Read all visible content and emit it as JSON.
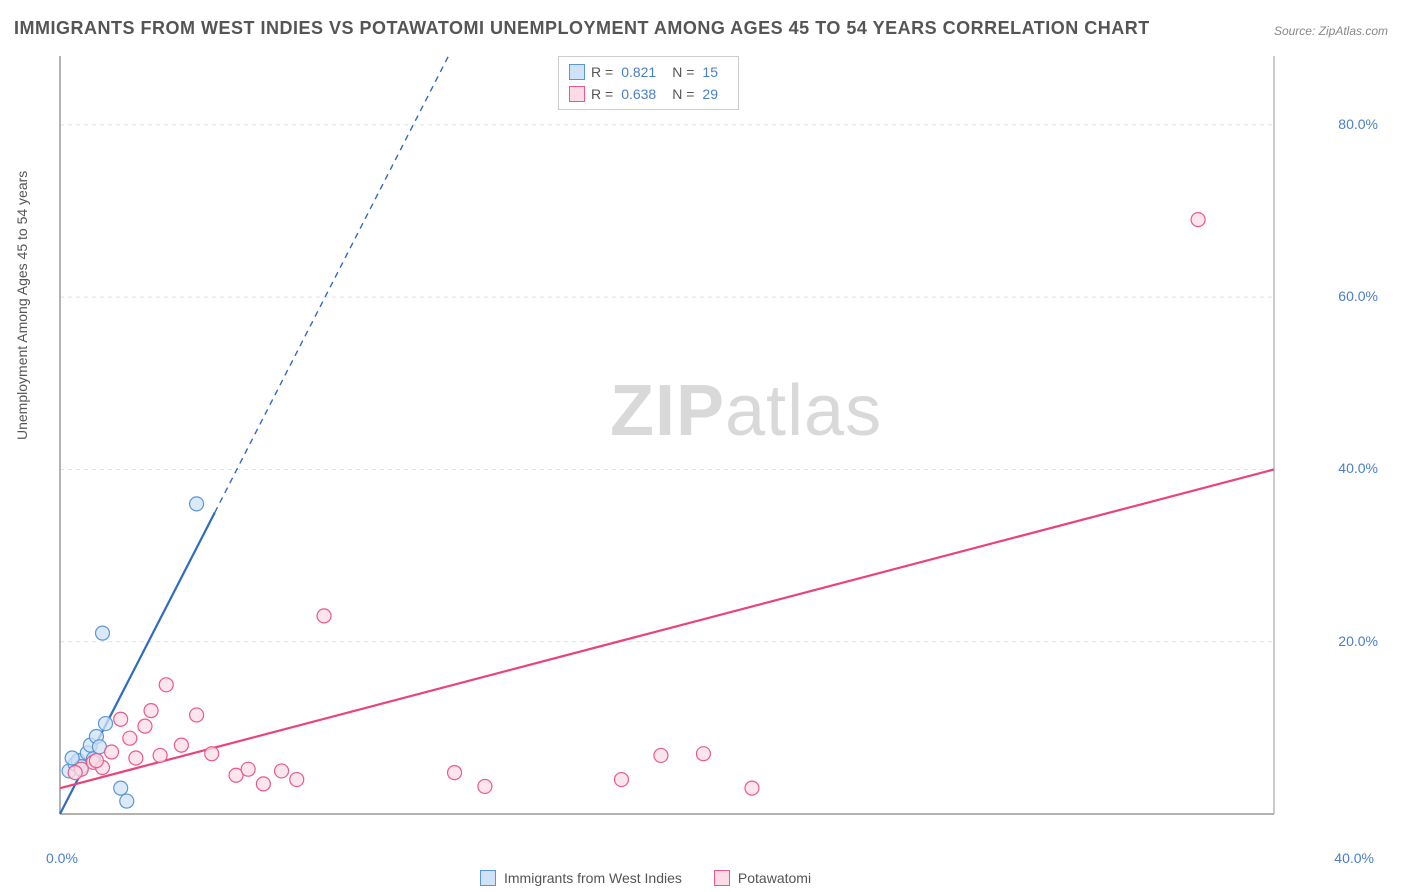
{
  "title": "IMMIGRANTS FROM WEST INDIES VS POTAWATOMI UNEMPLOYMENT AMONG AGES 45 TO 54 YEARS CORRELATION CHART",
  "source": "Source: ZipAtlas.com",
  "ylabel": "Unemployment Among Ages 45 to 54 years",
  "watermark_bold": "ZIP",
  "watermark_light": "atlas",
  "chart": {
    "type": "scatter",
    "xlim": [
      0,
      40
    ],
    "ylim": [
      0,
      88
    ],
    "xtick_labels": [
      "0.0%",
      "40.0%"
    ],
    "ytick_values": [
      20,
      40,
      60,
      80
    ],
    "ytick_labels": [
      "20.0%",
      "40.0%",
      "60.0%",
      "80.0%"
    ],
    "grid_color": "#e1e1e1",
    "axis_color": "#999999",
    "background": "#ffffff",
    "marker_radius": 7,
    "marker_stroke_width": 1.2,
    "line_width": 2.2
  },
  "series": [
    {
      "name": "Immigrants from West Indies",
      "color_fill": "#cfe2f7",
      "color_stroke": "#5a97d6",
      "line_color": "#2f6bc0",
      "r_value": "0.821",
      "n_value": "15",
      "points": [
        [
          0.3,
          5.0
        ],
        [
          0.5,
          5.8
        ],
        [
          0.6,
          6.2
        ],
        [
          0.7,
          5.5
        ],
        [
          0.9,
          7.1
        ],
        [
          1.0,
          8.0
        ],
        [
          1.1,
          6.4
        ],
        [
          1.2,
          9.0
        ],
        [
          1.3,
          7.8
        ],
        [
          1.5,
          10.5
        ],
        [
          2.0,
          3.0
        ],
        [
          2.2,
          1.5
        ],
        [
          1.4,
          21.0
        ],
        [
          4.5,
          36.0
        ],
        [
          0.4,
          6.5
        ]
      ],
      "trend_solid": [
        [
          0,
          0
        ],
        [
          5.1,
          35.0
        ]
      ],
      "trend_dashed": [
        [
          5.1,
          35.0
        ],
        [
          12.8,
          88.0
        ]
      ]
    },
    {
      "name": "Potawatomi",
      "color_fill": "#fbdce5",
      "color_stroke": "#ea5a88",
      "line_color": "#e9447a",
      "r_value": "0.638",
      "n_value": "29",
      "points": [
        [
          0.7,
          5.2
        ],
        [
          1.1,
          6.0
        ],
        [
          1.4,
          5.4
        ],
        [
          1.7,
          7.2
        ],
        [
          2.0,
          11.0
        ],
        [
          2.3,
          8.8
        ],
        [
          2.5,
          6.5
        ],
        [
          2.8,
          10.2
        ],
        [
          3.0,
          12.0
        ],
        [
          3.3,
          6.8
        ],
        [
          3.5,
          15.0
        ],
        [
          4.0,
          8.0
        ],
        [
          4.5,
          11.5
        ],
        [
          5.0,
          7.0
        ],
        [
          5.8,
          4.5
        ],
        [
          6.2,
          5.2
        ],
        [
          6.7,
          3.5
        ],
        [
          7.3,
          5.0
        ],
        [
          7.8,
          4.0
        ],
        [
          8.7,
          23.0
        ],
        [
          13.0,
          4.8
        ],
        [
          14.0,
          3.2
        ],
        [
          18.5,
          4.0
        ],
        [
          19.8,
          6.8
        ],
        [
          21.2,
          7.0
        ],
        [
          22.8,
          3.0
        ],
        [
          37.5,
          69.0
        ],
        [
          1.2,
          6.2
        ],
        [
          0.5,
          4.8
        ]
      ],
      "trend_solid": [
        [
          0,
          3.0
        ],
        [
          40,
          40.0
        ]
      ]
    }
  ],
  "legend_top": {
    "r_label": "R =",
    "n_label": "N ="
  }
}
